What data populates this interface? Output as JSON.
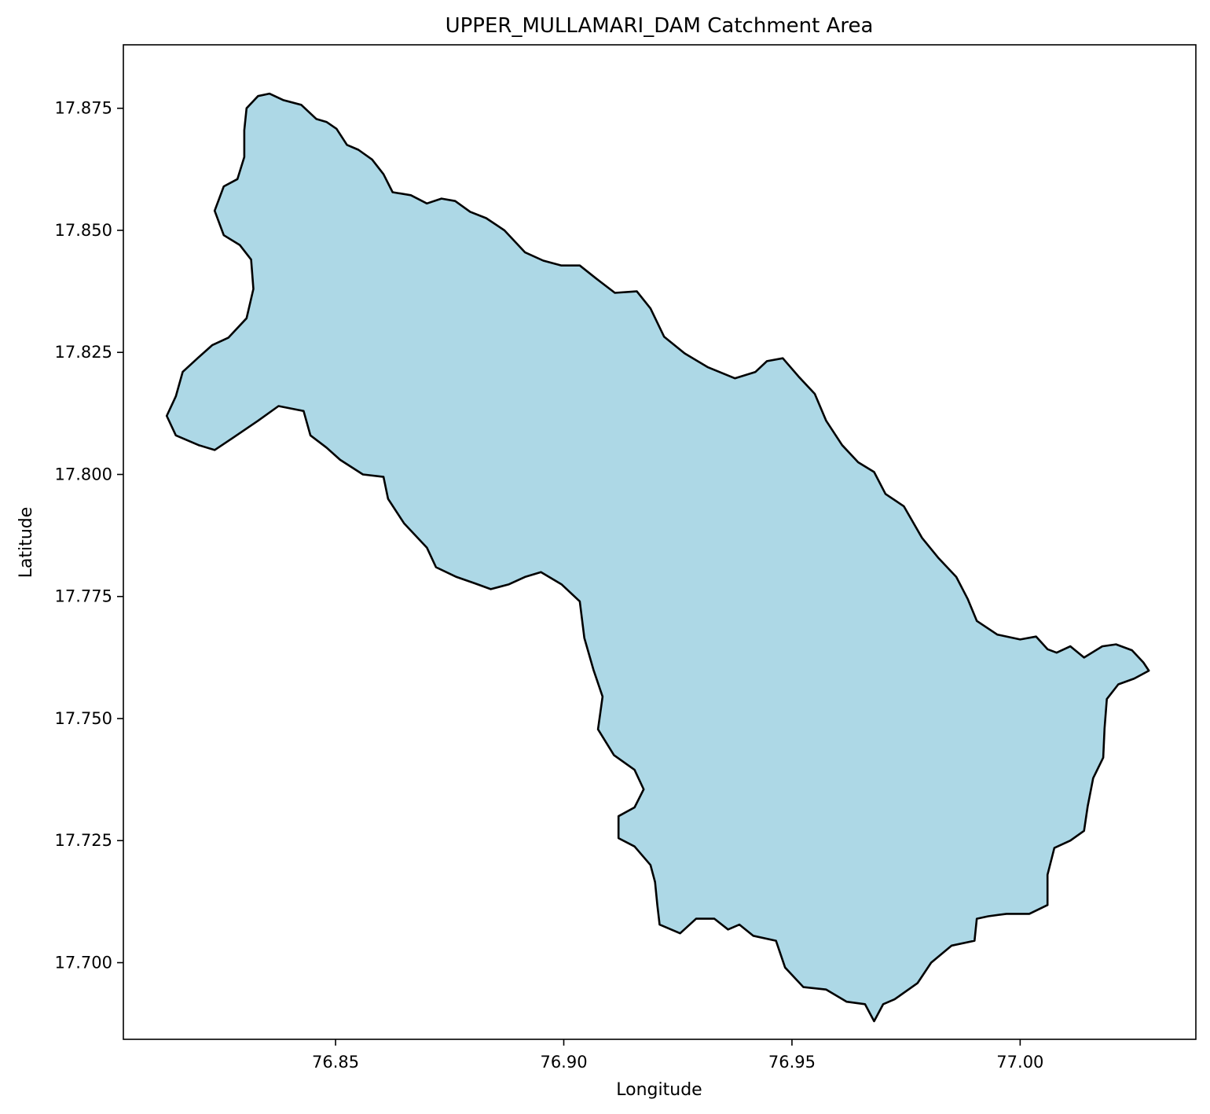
{
  "chart_data": {
    "type": "map",
    "title": "UPPER_MULLAMARI_DAM Catchment Area",
    "xlabel": "Longitude",
    "ylabel": "Latitude",
    "xlim": [
      76.8035,
      77.0385
    ],
    "ylim": [
      17.6843,
      17.888
    ],
    "x_ticks": [
      76.85,
      76.9,
      76.95,
      77.0
    ],
    "x_tick_labels": [
      "76.85",
      "76.90",
      "76.95",
      "77.00"
    ],
    "y_ticks": [
      17.7,
      17.725,
      17.75,
      17.775,
      17.8,
      17.825,
      17.85,
      17.875
    ],
    "y_tick_labels": [
      "17.700",
      "17.725",
      "17.750",
      "17.775",
      "17.800",
      "17.825",
      "17.850",
      "17.875"
    ],
    "grid": false,
    "fill_color": "#add8e6",
    "edge_color": "#000000",
    "polygon_lonlat": [
      [
        76.8355,
        17.878
      ],
      [
        76.8385,
        17.8767
      ],
      [
        76.8425,
        17.8757
      ],
      [
        76.8458,
        17.8728
      ],
      [
        76.848,
        17.8722
      ],
      [
        76.8502,
        17.8708
      ],
      [
        76.8525,
        17.8675
      ],
      [
        76.855,
        17.8665
      ],
      [
        76.858,
        17.8645
      ],
      [
        76.8605,
        17.8615
      ],
      [
        76.8625,
        17.8578
      ],
      [
        76.8665,
        17.8572
      ],
      [
        76.87,
        17.8555
      ],
      [
        76.8732,
        17.8565
      ],
      [
        76.8762,
        17.856
      ],
      [
        76.8795,
        17.8538
      ],
      [
        76.883,
        17.8525
      ],
      [
        76.887,
        17.85
      ],
      [
        76.8915,
        17.8455
      ],
      [
        76.8955,
        17.8438
      ],
      [
        76.8995,
        17.8428
      ],
      [
        76.9035,
        17.8428
      ],
      [
        76.907,
        17.8402
      ],
      [
        76.9112,
        17.8372
      ],
      [
        76.916,
        17.8375
      ],
      [
        76.919,
        17.834
      ],
      [
        76.922,
        17.8282
      ],
      [
        76.9265,
        17.8248
      ],
      [
        76.9315,
        17.822
      ],
      [
        76.9375,
        17.8197
      ],
      [
        76.942,
        17.821
      ],
      [
        76.9445,
        17.8232
      ],
      [
        76.948,
        17.8238
      ],
      [
        76.9515,
        17.82
      ],
      [
        76.955,
        17.8165
      ],
      [
        76.9575,
        17.811
      ],
      [
        76.961,
        17.806
      ],
      [
        76.9645,
        17.8025
      ],
      [
        76.968,
        17.8005
      ],
      [
        76.9705,
        17.796
      ],
      [
        76.9745,
        17.7935
      ],
      [
        76.9785,
        17.787
      ],
      [
        76.982,
        17.783
      ],
      [
        76.986,
        17.779
      ],
      [
        76.9885,
        17.7745
      ],
      [
        76.9905,
        17.77
      ],
      [
        76.995,
        17.7672
      ],
      [
        77.0,
        17.7662
      ],
      [
        77.0035,
        17.7668
      ],
      [
        77.006,
        17.7642
      ],
      [
        77.008,
        17.7635
      ],
      [
        77.011,
        17.7648
      ],
      [
        77.014,
        17.7625
      ],
      [
        77.018,
        17.7648
      ],
      [
        77.021,
        17.7652
      ],
      [
        77.0245,
        17.764
      ],
      [
        77.027,
        17.7615
      ],
      [
        77.0282,
        17.7598
      ],
      [
        77.025,
        17.7582
      ],
      [
        77.0215,
        17.757
      ],
      [
        77.019,
        17.754
      ],
      [
        77.0185,
        17.748
      ],
      [
        77.0182,
        17.742
      ],
      [
        77.016,
        17.7378
      ],
      [
        77.0148,
        17.732
      ],
      [
        77.014,
        17.727
      ],
      [
        77.011,
        17.725
      ],
      [
        77.0075,
        17.7235
      ],
      [
        77.006,
        17.718
      ],
      [
        77.006,
        17.7118
      ],
      [
        77.002,
        17.71
      ],
      [
        76.997,
        17.71
      ],
      [
        76.993,
        17.7095
      ],
      [
        76.9905,
        17.709
      ],
      [
        76.99,
        17.7045
      ],
      [
        76.985,
        17.7035
      ],
      [
        76.9805,
        17.7
      ],
      [
        76.9775,
        17.6958
      ],
      [
        76.9725,
        17.6925
      ],
      [
        76.97,
        17.6915
      ],
      [
        76.968,
        17.688
      ],
      [
        76.966,
        17.6915
      ],
      [
        76.962,
        17.692
      ],
      [
        76.9575,
        17.6945
      ],
      [
        76.9525,
        17.695
      ],
      [
        76.9485,
        17.699
      ],
      [
        76.9465,
        17.7045
      ],
      [
        76.9415,
        17.7055
      ],
      [
        76.9385,
        17.7078
      ],
      [
        76.936,
        17.7068
      ],
      [
        76.933,
        17.709
      ],
      [
        76.929,
        17.709
      ],
      [
        76.9255,
        17.706
      ],
      [
        76.921,
        17.7078
      ],
      [
        76.9205,
        17.7118
      ],
      [
        76.92,
        17.7165
      ],
      [
        76.919,
        17.72
      ],
      [
        76.9155,
        17.7238
      ],
      [
        76.912,
        17.7255
      ],
      [
        76.912,
        17.73
      ],
      [
        76.9155,
        17.7318
      ],
      [
        76.9175,
        17.7355
      ],
      [
        76.9155,
        17.7395
      ],
      [
        76.911,
        17.7425
      ],
      [
        76.9075,
        17.7478
      ],
      [
        76.9085,
        17.7545
      ],
      [
        76.9065,
        17.76
      ],
      [
        76.9045,
        17.7665
      ],
      [
        76.9035,
        17.774
      ],
      [
        76.8995,
        17.7775
      ],
      [
        76.895,
        17.78
      ],
      [
        76.8915,
        17.779
      ],
      [
        76.888,
        17.7775
      ],
      [
        76.884,
        17.7765
      ],
      [
        76.8805,
        17.7777
      ],
      [
        76.8765,
        17.779
      ],
      [
        76.872,
        17.781
      ],
      [
        76.87,
        17.785
      ],
      [
        76.865,
        17.79
      ],
      [
        76.8615,
        17.795
      ],
      [
        76.8605,
        17.7995
      ],
      [
        76.856,
        17.8
      ],
      [
        76.851,
        17.803
      ],
      [
        76.848,
        17.8055
      ],
      [
        76.8445,
        17.808
      ],
      [
        76.843,
        17.813
      ],
      [
        76.8375,
        17.814
      ],
      [
        76.833,
        17.811
      ],
      [
        76.8275,
        17.8075
      ],
      [
        76.8235,
        17.805
      ],
      [
        76.82,
        17.806
      ],
      [
        76.815,
        17.808
      ],
      [
        76.813,
        17.812
      ],
      [
        76.815,
        17.816
      ],
      [
        76.8165,
        17.821
      ],
      [
        76.82,
        17.824
      ],
      [
        76.823,
        17.8265
      ],
      [
        76.8265,
        17.828
      ],
      [
        76.8305,
        17.832
      ],
      [
        76.832,
        17.838
      ],
      [
        76.8315,
        17.844
      ],
      [
        76.829,
        17.847
      ],
      [
        76.8255,
        17.849
      ],
      [
        76.8235,
        17.854
      ],
      [
        76.8255,
        17.859
      ],
      [
        76.8285,
        17.8605
      ],
      [
        76.83,
        17.865
      ],
      [
        76.83,
        17.8705
      ],
      [
        76.8305,
        17.875
      ],
      [
        76.833,
        17.8775
      ]
    ]
  }
}
